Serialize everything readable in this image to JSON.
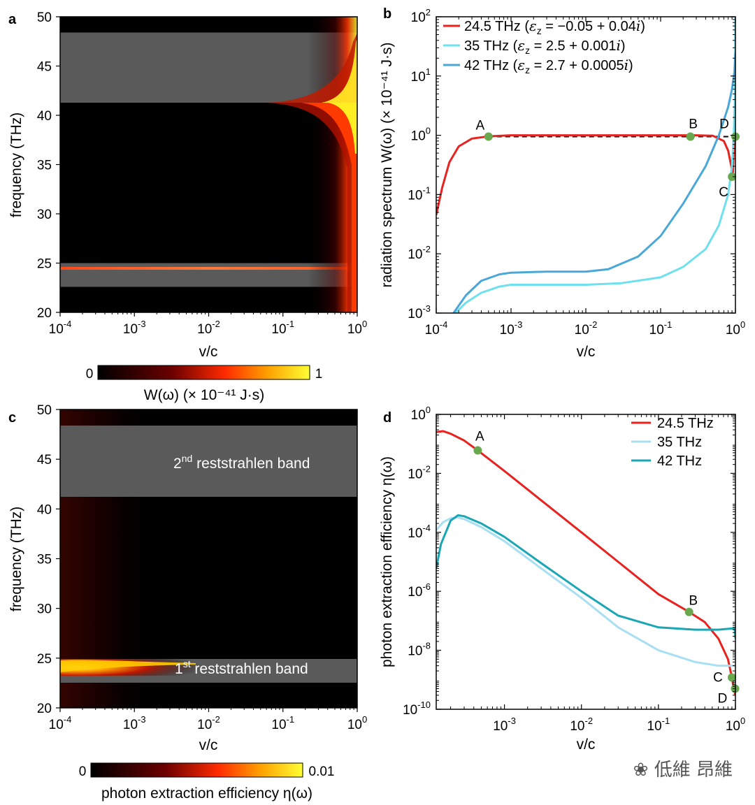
{
  "panels": {
    "a": {
      "letter": "a",
      "ylabel": "frequency (THz)",
      "xlabel": "v/c",
      "colorbar": {
        "min": "0",
        "max": "1",
        "label": "W(ω) (× 10⁻⁴¹ J·s)"
      }
    },
    "b": {
      "letter": "b",
      "ylabel": "radiation spectrum W(ω) (× 10⁻⁴¹ J·s)",
      "xlabel": "v/c"
    },
    "c": {
      "letter": "c",
      "ylabel": "frequency (THz)",
      "xlabel": "v/c",
      "band2": {
        "main": "2",
        "sup": "nd",
        "rest": " reststrahlen band"
      },
      "band1": {
        "main": "1",
        "sup": "st",
        "rest": " reststrahlen band"
      },
      "colorbar": {
        "min": "0",
        "max": "0.01",
        "label": "photon extraction efficiency η(ω)"
      }
    },
    "d": {
      "letter": "d",
      "ylabel": "photon extraction efficiency η(ω)",
      "xlabel": "v/c"
    }
  },
  "watermark": "低維 昂維",
  "colors": {
    "red": "#e8231f",
    "light_cyan": "#6fe0ee",
    "light_blue": "#a8dff2",
    "mid_blue": "#4aa8d8",
    "teal": "#1aa6b4",
    "green_dot": "#6aa84f",
    "band_gray": "#5a5a5a"
  },
  "chart_data": [
    {
      "panel": "a",
      "type": "heatmap",
      "xlabel": "v/c",
      "ylabel": "frequency (THz)",
      "x_scale": "log",
      "xlim": [
        0.0001,
        1
      ],
      "ylim": [
        20,
        50
      ],
      "x_ticks": [
        "10-4",
        "10-3",
        "10-2",
        "10-1",
        "100"
      ],
      "y_ticks": [
        "20",
        "25",
        "30",
        "35",
        "40",
        "45",
        "50"
      ],
      "reststrahlen_bands_THz": [
        [
          22.5,
          24.9
        ],
        [
          41.2,
          48.3
        ]
      ],
      "colorbar_range": [
        0,
        1
      ],
      "colorbar_label": "W(ω) (× 10⁻⁴¹ J·s)"
    },
    {
      "panel": "b",
      "type": "line",
      "xlabel": "v/c",
      "ylabel": "radiation spectrum W(ω) (× 10⁻⁴¹ J·s)",
      "x_scale": "log",
      "y_scale": "log",
      "xlim": [
        0.0001,
        1
      ],
      "ylim": [
        0.001,
        100
      ],
      "x_ticks": [
        "10-4",
        "10-3",
        "10-2",
        "10-1",
        "100"
      ],
      "y_ticks": [
        "10-3",
        "10-2",
        "10-1",
        "100",
        "101",
        "102"
      ],
      "legend_position": "top-left",
      "series": [
        {
          "name": "24.5 THz (εz = −0.05 + 0.04i)",
          "legend_main": "24.5 THz (",
          "legend_eps": "ε",
          "legend_sub": "z",
          "legend_rest": " =  −0.05 + 0.04",
          "legend_i": "i",
          "color": "#e8231f",
          "x": [
            0.0001,
            0.00012,
            0.00015,
            0.0002,
            0.0003,
            0.0005,
            0.001,
            0.01,
            0.1,
            0.3,
            0.5,
            0.7,
            0.8,
            0.88,
            0.92,
            0.95,
            0.97,
            0.99,
            1.0
          ],
          "y": [
            0.045,
            0.13,
            0.35,
            0.65,
            0.88,
            0.96,
            1.0,
            1.0,
            1.0,
            1.0,
            0.98,
            0.8,
            0.55,
            0.3,
            0.2,
            0.5,
            1.0,
            1.0,
            1.0
          ]
        },
        {
          "name": "35 THz (εz = 2.5 + 0.001i)",
          "legend_main": "35 THz (",
          "legend_eps": "ε",
          "legend_sub": "z",
          "legend_rest": " = 2.5 + 0.001",
          "legend_i": "i",
          "color": "#6fe0ee",
          "x": [
            0.00018,
            0.00025,
            0.0004,
            0.0007,
            0.001,
            0.003,
            0.01,
            0.03,
            0.1,
            0.2,
            0.4,
            0.6,
            0.8,
            0.9,
            0.95,
            0.99,
            1.0
          ],
          "y": [
            0.001,
            0.0015,
            0.0022,
            0.0028,
            0.003,
            0.003,
            0.003,
            0.0032,
            0.004,
            0.006,
            0.012,
            0.03,
            0.1,
            0.3,
            1.0,
            5,
            100
          ]
        },
        {
          "name": "42 THz (εz = 2.7 + 0.0005i)",
          "legend_main": "42 THz (",
          "legend_eps": "ε",
          "legend_sub": "z",
          "legend_rest": " = 2.7 + 0.0005",
          "legend_i": "i",
          "color": "#4aa8d8",
          "x": [
            0.00017,
            0.00025,
            0.0004,
            0.0007,
            0.001,
            0.003,
            0.01,
            0.02,
            0.05,
            0.1,
            0.2,
            0.4,
            0.6,
            0.8,
            0.9,
            0.97,
            1.0
          ],
          "y": [
            0.001,
            0.002,
            0.0035,
            0.0045,
            0.0048,
            0.005,
            0.005,
            0.0055,
            0.009,
            0.02,
            0.07,
            0.3,
            1.0,
            3.0,
            6.0,
            12,
            25
          ]
        }
      ],
      "reference_line": {
        "style": "dashed",
        "color": "#000000",
        "x": [
          0.0005,
          1
        ],
        "y": [
          0.95,
          0.95
        ]
      },
      "annotations": [
        {
          "label": "A",
          "x": 0.0005,
          "y": 0.95
        },
        {
          "label": "B",
          "x": 0.25,
          "y": 0.95
        },
        {
          "label": "C",
          "x": 0.9,
          "y": 0.2
        },
        {
          "label": "D",
          "x": 1.0,
          "y": 0.95
        }
      ]
    },
    {
      "panel": "c",
      "type": "heatmap",
      "xlabel": "v/c",
      "ylabel": "frequency (THz)",
      "x_scale": "log",
      "xlim": [
        0.0001,
        1
      ],
      "ylim": [
        20,
        50
      ],
      "x_ticks": [
        "10-4",
        "10-3",
        "10-2",
        "10-1",
        "100"
      ],
      "y_ticks": [
        "20",
        "25",
        "30",
        "35",
        "40",
        "45",
        "50"
      ],
      "reststrahlen_bands_THz": [
        [
          22.5,
          24.9
        ],
        [
          41.2,
          48.3
        ]
      ],
      "colorbar_range": [
        0,
        0.01
      ],
      "colorbar_label": "photon extraction efficiency η(ω)"
    },
    {
      "panel": "d",
      "type": "line",
      "xlabel": "v/c",
      "ylabel": "photon extraction efficiency η(ω)",
      "x_scale": "log",
      "y_scale": "log",
      "xlim": [
        0.00013,
        1
      ],
      "ylim": [
        1e-10,
        1
      ],
      "x_ticks": [
        "10-3",
        "10-2",
        "10-1",
        "100"
      ],
      "y_ticks": [
        "10-10",
        "10-8",
        "10-6",
        "10-4",
        "10-2",
        "100"
      ],
      "legend_position": "top-right",
      "series": [
        {
          "name": "24.5 THz",
          "color": "#e8231f",
          "x": [
            0.00013,
            0.00016,
            0.0002,
            0.0003,
            0.00045,
            0.001,
            0.01,
            0.1,
            0.25,
            0.4,
            0.6,
            0.8,
            0.9,
            0.95,
            1.0
          ],
          "y": [
            0.25,
            0.27,
            0.22,
            0.13,
            0.06,
            0.012,
            0.0001,
            8e-07,
            2e-07,
            9e-08,
            2.5e-08,
            5e-09,
            1.2e-09,
            5e-10,
            3e-10
          ]
        },
        {
          "name": "35 THz",
          "color": "#a8dff2",
          "x": [
            0.00013,
            0.00016,
            0.0002,
            0.00025,
            0.0003,
            0.0005,
            0.001,
            0.003,
            0.01,
            0.03,
            0.1,
            0.3,
            0.6,
            0.9,
            1.0
          ],
          "y": [
            0.00012,
            0.00022,
            0.0003,
            0.00032,
            0.00028,
            0.00015,
            5e-05,
            6e-06,
            6e-07,
            6e-08,
            1e-08,
            4e-09,
            3e-09,
            3e-09,
            3e-09
          ]
        },
        {
          "name": "42 THz",
          "color": "#1aa6b4",
          "x": [
            0.00013,
            0.00015,
            0.0002,
            0.00025,
            0.0003,
            0.0005,
            0.001,
            0.003,
            0.01,
            0.03,
            0.1,
            0.3,
            0.6,
            0.9,
            0.98,
            1.0
          ],
          "y": [
            6e-06,
            4e-05,
            0.00025,
            0.00038,
            0.00035,
            0.0002,
            7e-05,
            9e-06,
            1e-06,
            1.5e-07,
            6e-08,
            5e-08,
            5e-08,
            5.5e-08,
            5.5e-08,
            2.5e-08
          ]
        }
      ],
      "annotations": [
        {
          "label": "A",
          "x": 0.00045,
          "y": 0.06
        },
        {
          "label": "B",
          "x": 0.25,
          "y": 2e-07
        },
        {
          "label": "C",
          "x": 0.9,
          "y": 1.2e-09
        },
        {
          "label": "D",
          "x": 0.99,
          "y": 5e-10
        }
      ]
    }
  ]
}
